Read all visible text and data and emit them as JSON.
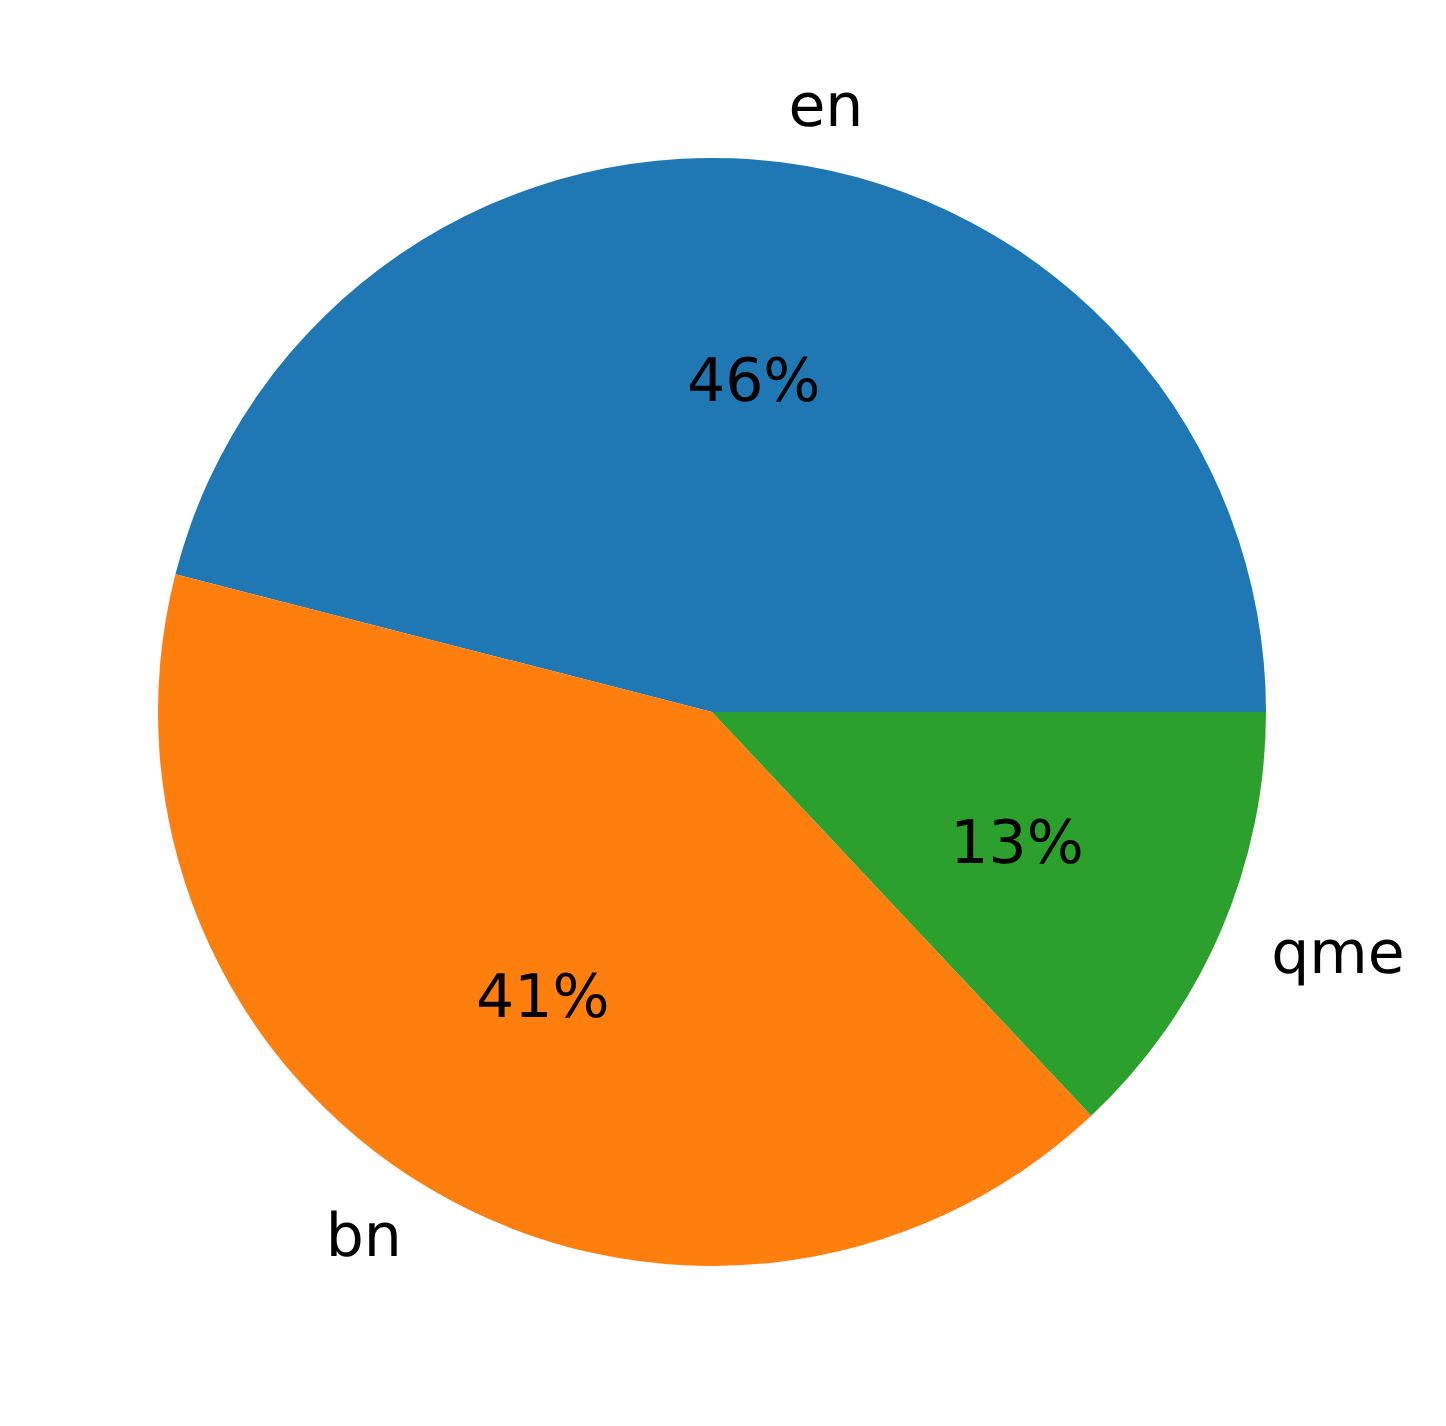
{
  "chart_data": {
    "type": "pie",
    "categories": [
      "en",
      "bn",
      "qme"
    ],
    "values": [
      46,
      41,
      13
    ],
    "colors": [
      "#1f77b4",
      "#ff7f0e",
      "#2ca02c"
    ],
    "value_labels": [
      "46%",
      "41%",
      "13%"
    ],
    "legend": false
  }
}
